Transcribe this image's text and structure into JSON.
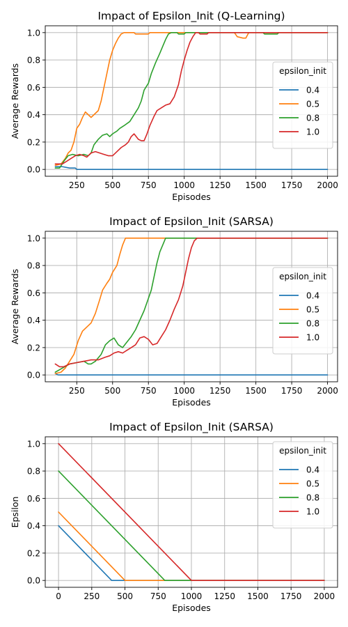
{
  "chart_data": [
    {
      "type": "line",
      "title": "Impact of Epsilon_Init (Q-Learning)",
      "xlabel": "Episodes",
      "ylabel": "Average Rewards",
      "xlim": [
        30,
        2070
      ],
      "ylim": [
        -0.05,
        1.05
      ],
      "xticks": [
        250,
        500,
        750,
        1000,
        1250,
        1500,
        1750,
        2000
      ],
      "xtick_labels": [
        "250",
        "500",
        "750",
        "1000",
        "1250",
        "1500",
        "1750",
        "2000"
      ],
      "yticks": [
        0,
        0.2,
        0.4,
        0.6,
        0.8,
        1.0
      ],
      "ytick_labels": [
        "0.0",
        "0.2",
        "0.4",
        "0.6",
        "0.8",
        "1.0"
      ],
      "grid": true,
      "legend": {
        "title": "epsilon_init",
        "position": "center-right"
      },
      "series": [
        {
          "name": "0.4",
          "color": "#1f77b4",
          "points": [
            [
              100,
              0.02
            ],
            [
              150,
              0.02
            ],
            [
              200,
              0.01
            ],
            [
              240,
              0.01
            ],
            [
              250,
              0.0
            ],
            [
              2000,
              0.0
            ]
          ]
        },
        {
          "name": "0.5",
          "color": "#ff7f0e",
          "points": [
            [
              100,
              0.03
            ],
            [
              140,
              0.04
            ],
            [
              170,
              0.08
            ],
            [
              190,
              0.12
            ],
            [
              210,
              0.14
            ],
            [
              230,
              0.2
            ],
            [
              250,
              0.3
            ],
            [
              270,
              0.33
            ],
            [
              290,
              0.38
            ],
            [
              310,
              0.42
            ],
            [
              330,
              0.4
            ],
            [
              350,
              0.38
            ],
            [
              370,
              0.4
            ],
            [
              400,
              0.43
            ],
            [
              420,
              0.5
            ],
            [
              440,
              0.6
            ],
            [
              460,
              0.7
            ],
            [
              480,
              0.8
            ],
            [
              500,
              0.87
            ],
            [
              520,
              0.92
            ],
            [
              540,
              0.96
            ],
            [
              560,
              0.99
            ],
            [
              580,
              1.0
            ],
            [
              650,
              1.0
            ],
            [
              660,
              0.99
            ],
            [
              750,
              0.99
            ],
            [
              760,
              1.0
            ],
            [
              1350,
              1.0
            ],
            [
              1370,
              0.97
            ],
            [
              1410,
              0.96
            ],
            [
              1430,
              0.96
            ],
            [
              1450,
              1.0
            ],
            [
              1650,
              1.0
            ],
            [
              1700,
              1.0
            ],
            [
              2000,
              1.0
            ]
          ]
        },
        {
          "name": "0.8",
          "color": "#2ca02c",
          "points": [
            [
              100,
              0.01
            ],
            [
              130,
              0.01
            ],
            [
              160,
              0.06
            ],
            [
              190,
              0.1
            ],
            [
              220,
              0.11
            ],
            [
              260,
              0.1
            ],
            [
              300,
              0.11
            ],
            [
              330,
              0.1
            ],
            [
              350,
              0.12
            ],
            [
              370,
              0.18
            ],
            [
              400,
              0.22
            ],
            [
              430,
              0.25
            ],
            [
              460,
              0.26
            ],
            [
              480,
              0.24
            ],
            [
              500,
              0.26
            ],
            [
              530,
              0.28
            ],
            [
              550,
              0.3
            ],
            [
              580,
              0.32
            ],
            [
              620,
              0.35
            ],
            [
              650,
              0.4
            ],
            [
              680,
              0.45
            ],
            [
              700,
              0.5
            ],
            [
              720,
              0.58
            ],
            [
              750,
              0.63
            ],
            [
              770,
              0.7
            ],
            [
              800,
              0.78
            ],
            [
              830,
              0.85
            ],
            [
              850,
              0.9
            ],
            [
              870,
              0.95
            ],
            [
              890,
              0.99
            ],
            [
              910,
              1.0
            ],
            [
              950,
              1.0
            ],
            [
              960,
              0.99
            ],
            [
              1000,
              0.99
            ],
            [
              1010,
              1.0
            ],
            [
              1550,
              1.0
            ],
            [
              1560,
              0.99
            ],
            [
              1650,
              0.99
            ],
            [
              1660,
              1.0
            ],
            [
              2000,
              1.0
            ]
          ]
        },
        {
          "name": "1.0",
          "color": "#d62728",
          "points": [
            [
              100,
              0.04
            ],
            [
              150,
              0.04
            ],
            [
              180,
              0.06
            ],
            [
              210,
              0.08
            ],
            [
              240,
              0.1
            ],
            [
              270,
              0.11
            ],
            [
              300,
              0.1
            ],
            [
              320,
              0.09
            ],
            [
              350,
              0.12
            ],
            [
              380,
              0.13
            ],
            [
              410,
              0.12
            ],
            [
              440,
              0.11
            ],
            [
              470,
              0.1
            ],
            [
              500,
              0.1
            ],
            [
              530,
              0.13
            ],
            [
              560,
              0.16
            ],
            [
              590,
              0.18
            ],
            [
              610,
              0.2
            ],
            [
              630,
              0.24
            ],
            [
              650,
              0.26
            ],
            [
              680,
              0.22
            ],
            [
              700,
              0.21
            ],
            [
              720,
              0.21
            ],
            [
              740,
              0.26
            ],
            [
              760,
              0.32
            ],
            [
              790,
              0.39
            ],
            [
              810,
              0.43
            ],
            [
              840,
              0.45
            ],
            [
              870,
              0.47
            ],
            [
              900,
              0.48
            ],
            [
              930,
              0.53
            ],
            [
              960,
              0.62
            ],
            [
              980,
              0.72
            ],
            [
              1000,
              0.8
            ],
            [
              1020,
              0.87
            ],
            [
              1040,
              0.93
            ],
            [
              1060,
              0.97
            ],
            [
              1080,
              1.0
            ],
            [
              1100,
              1.0
            ],
            [
              1110,
              0.99
            ],
            [
              1160,
              0.99
            ],
            [
              1170,
              1.0
            ],
            [
              2000,
              1.0
            ]
          ]
        }
      ]
    },
    {
      "type": "line",
      "title": "Impact of Epsilon_Init (SARSA)",
      "xlabel": "Episodes",
      "ylabel": "Average Rewards",
      "xlim": [
        30,
        2070
      ],
      "ylim": [
        -0.05,
        1.05
      ],
      "xticks": [
        250,
        500,
        750,
        1000,
        1250,
        1500,
        1750,
        2000
      ],
      "xtick_labels": [
        "250",
        "500",
        "750",
        "1000",
        "1250",
        "1500",
        "1750",
        "2000"
      ],
      "yticks": [
        0,
        0.2,
        0.4,
        0.6,
        0.8,
        1.0
      ],
      "ytick_labels": [
        "0.0",
        "0.2",
        "0.4",
        "0.6",
        "0.8",
        "1.0"
      ],
      "grid": true,
      "legend": {
        "title": "epsilon_init",
        "position": "center-right"
      },
      "series": [
        {
          "name": "0.4",
          "color": "#1f77b4",
          "points": [
            [
              100,
              0.01
            ],
            [
              120,
              0.0
            ],
            [
              2000,
              0.0
            ]
          ]
        },
        {
          "name": "0.5",
          "color": "#ff7f0e",
          "points": [
            [
              100,
              0.01
            ],
            [
              140,
              0.02
            ],
            [
              170,
              0.05
            ],
            [
              200,
              0.1
            ],
            [
              230,
              0.15
            ],
            [
              260,
              0.25
            ],
            [
              290,
              0.32
            ],
            [
              320,
              0.35
            ],
            [
              350,
              0.38
            ],
            [
              380,
              0.45
            ],
            [
              410,
              0.55
            ],
            [
              430,
              0.62
            ],
            [
              460,
              0.67
            ],
            [
              480,
              0.7
            ],
            [
              500,
              0.75
            ],
            [
              530,
              0.8
            ],
            [
              550,
              0.88
            ],
            [
              570,
              0.95
            ],
            [
              590,
              1.0
            ],
            [
              2000,
              1.0
            ]
          ]
        },
        {
          "name": "0.8",
          "color": "#2ca02c",
          "points": [
            [
              100,
              0.02
            ],
            [
              150,
              0.05
            ],
            [
              200,
              0.08
            ],
            [
              250,
              0.09
            ],
            [
              300,
              0.1
            ],
            [
              330,
              0.08
            ],
            [
              350,
              0.08
            ],
            [
              380,
              0.1
            ],
            [
              420,
              0.15
            ],
            [
              450,
              0.22
            ],
            [
              480,
              0.25
            ],
            [
              510,
              0.27
            ],
            [
              540,
              0.22
            ],
            [
              570,
              0.2
            ],
            [
              600,
              0.24
            ],
            [
              630,
              0.28
            ],
            [
              660,
              0.33
            ],
            [
              690,
              0.4
            ],
            [
              720,
              0.47
            ],
            [
              750,
              0.56
            ],
            [
              770,
              0.62
            ],
            [
              790,
              0.72
            ],
            [
              810,
              0.82
            ],
            [
              830,
              0.9
            ],
            [
              850,
              0.95
            ],
            [
              870,
              1.0
            ],
            [
              2000,
              1.0
            ]
          ]
        },
        {
          "name": "1.0",
          "color": "#d62728",
          "points": [
            [
              100,
              0.08
            ],
            [
              130,
              0.06
            ],
            [
              160,
              0.06
            ],
            [
              200,
              0.08
            ],
            [
              250,
              0.09
            ],
            [
              300,
              0.1
            ],
            [
              350,
              0.11
            ],
            [
              400,
              0.11
            ],
            [
              450,
              0.13
            ],
            [
              480,
              0.14
            ],
            [
              510,
              0.16
            ],
            [
              540,
              0.17
            ],
            [
              570,
              0.16
            ],
            [
              600,
              0.18
            ],
            [
              630,
              0.2
            ],
            [
              660,
              0.22
            ],
            [
              690,
              0.27
            ],
            [
              720,
              0.28
            ],
            [
              750,
              0.26
            ],
            [
              780,
              0.22
            ],
            [
              810,
              0.23
            ],
            [
              840,
              0.28
            ],
            [
              870,
              0.33
            ],
            [
              900,
              0.4
            ],
            [
              930,
              0.48
            ],
            [
              960,
              0.55
            ],
            [
              990,
              0.65
            ],
            [
              1010,
              0.75
            ],
            [
              1030,
              0.85
            ],
            [
              1050,
              0.93
            ],
            [
              1070,
              0.98
            ],
            [
              1090,
              1.0
            ],
            [
              2000,
              1.0
            ]
          ]
        }
      ]
    },
    {
      "type": "line",
      "title": "Impact of Epsilon_Init (SARSA)",
      "xlabel": "Episodes",
      "ylabel": "Epsilon",
      "xlim": [
        -100,
        2100
      ],
      "ylim": [
        -0.05,
        1.05
      ],
      "xticks": [
        0,
        250,
        500,
        750,
        1000,
        1250,
        1500,
        1750,
        2000
      ],
      "xtick_labels": [
        "0",
        "250",
        "500",
        "750",
        "1000",
        "1250",
        "1500",
        "1750",
        "2000"
      ],
      "yticks": [
        0,
        0.2,
        0.4,
        0.6,
        0.8,
        1.0
      ],
      "ytick_labels": [
        "0.0",
        "0.2",
        "0.4",
        "0.6",
        "0.8",
        "1.0"
      ],
      "grid": true,
      "legend": {
        "title": "epsilon_init",
        "position": "top-right"
      },
      "series": [
        {
          "name": "0.4",
          "color": "#1f77b4",
          "points": [
            [
              0,
              0.4
            ],
            [
              400,
              0.0
            ],
            [
              2000,
              0.0
            ]
          ]
        },
        {
          "name": "0.5",
          "color": "#ff7f0e",
          "points": [
            [
              0,
              0.5
            ],
            [
              500,
              0.0
            ],
            [
              2000,
              0.0
            ]
          ]
        },
        {
          "name": "0.8",
          "color": "#2ca02c",
          "points": [
            [
              0,
              0.8
            ],
            [
              800,
              0.0
            ],
            [
              2000,
              0.0
            ]
          ]
        },
        {
          "name": "1.0",
          "color": "#d62728",
          "points": [
            [
              0,
              1.0
            ],
            [
              1000,
              0.0
            ],
            [
              2000,
              0.0
            ]
          ]
        }
      ]
    }
  ]
}
